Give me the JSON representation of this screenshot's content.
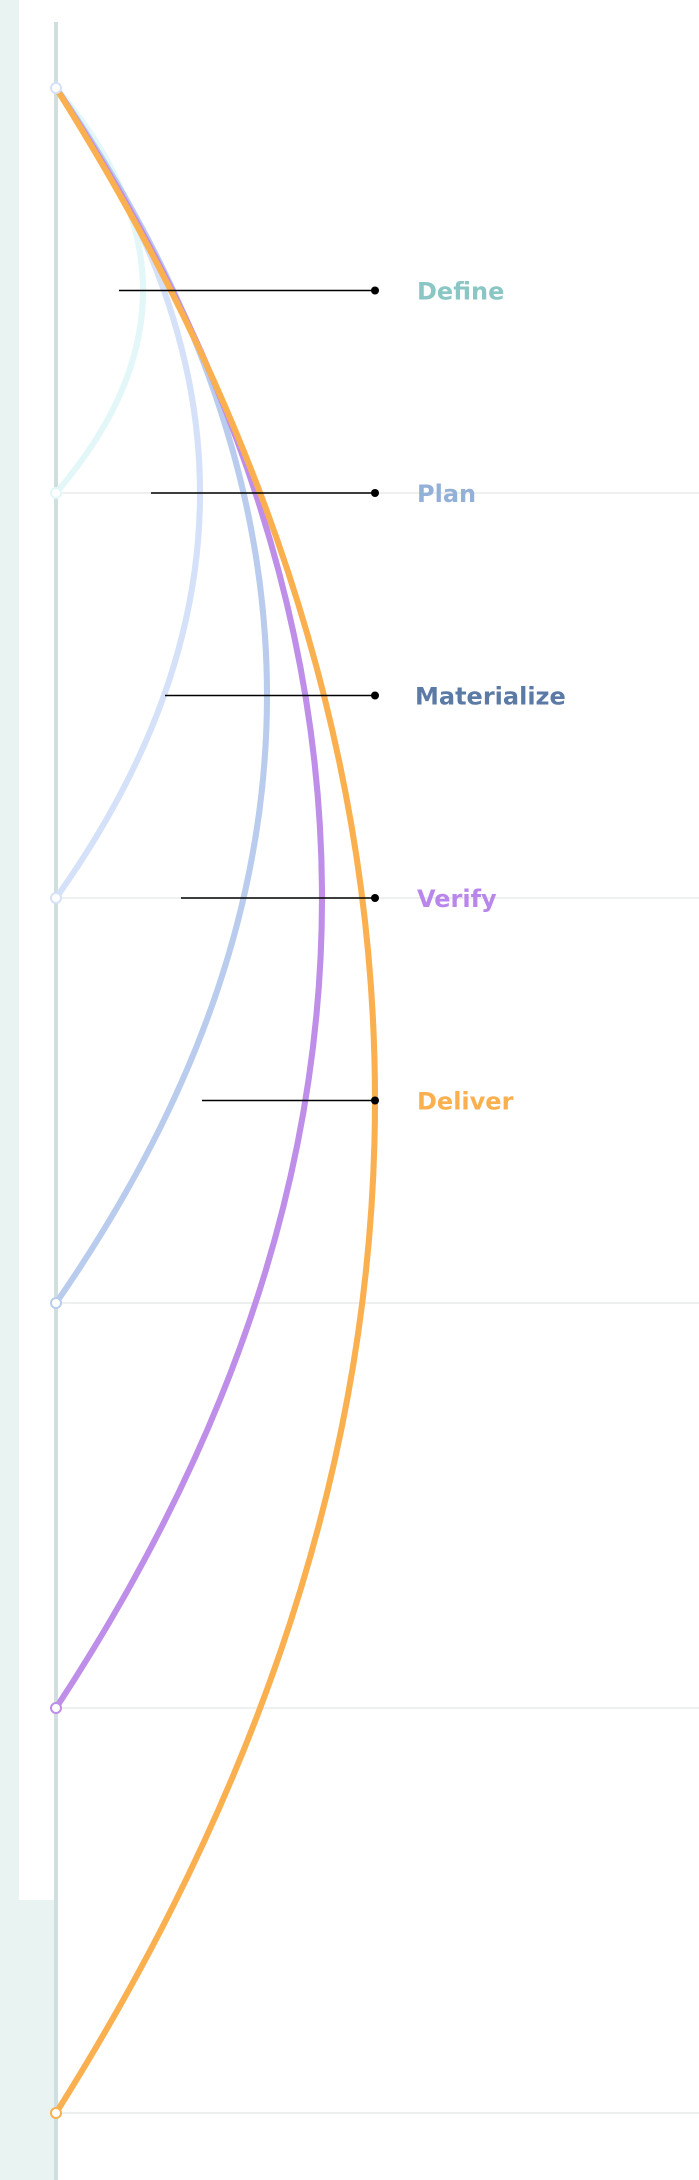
{
  "phases": [
    {
      "label": "Define",
      "color": "#8ac6c4",
      "arc_color": "#e3f7f9"
    },
    {
      "label": "Plan",
      "color": "#93b0d6",
      "arc_color": "#d4e1f9"
    },
    {
      "label": "Materialize",
      "color": "#5b7aa6",
      "arc_color": "#b9ccee"
    },
    {
      "label": "Verify",
      "color": "#b986ec",
      "arc_color": "#be8ee9"
    },
    {
      "label": "Deliver",
      "color": "#fbb04f",
      "arc_color": "#fbb04f"
    }
  ],
  "colors": {
    "axis": "#cfdfe0",
    "divider": "#e8eaea",
    "leader": "#000000",
    "background_strip": "#e9f3f1"
  }
}
